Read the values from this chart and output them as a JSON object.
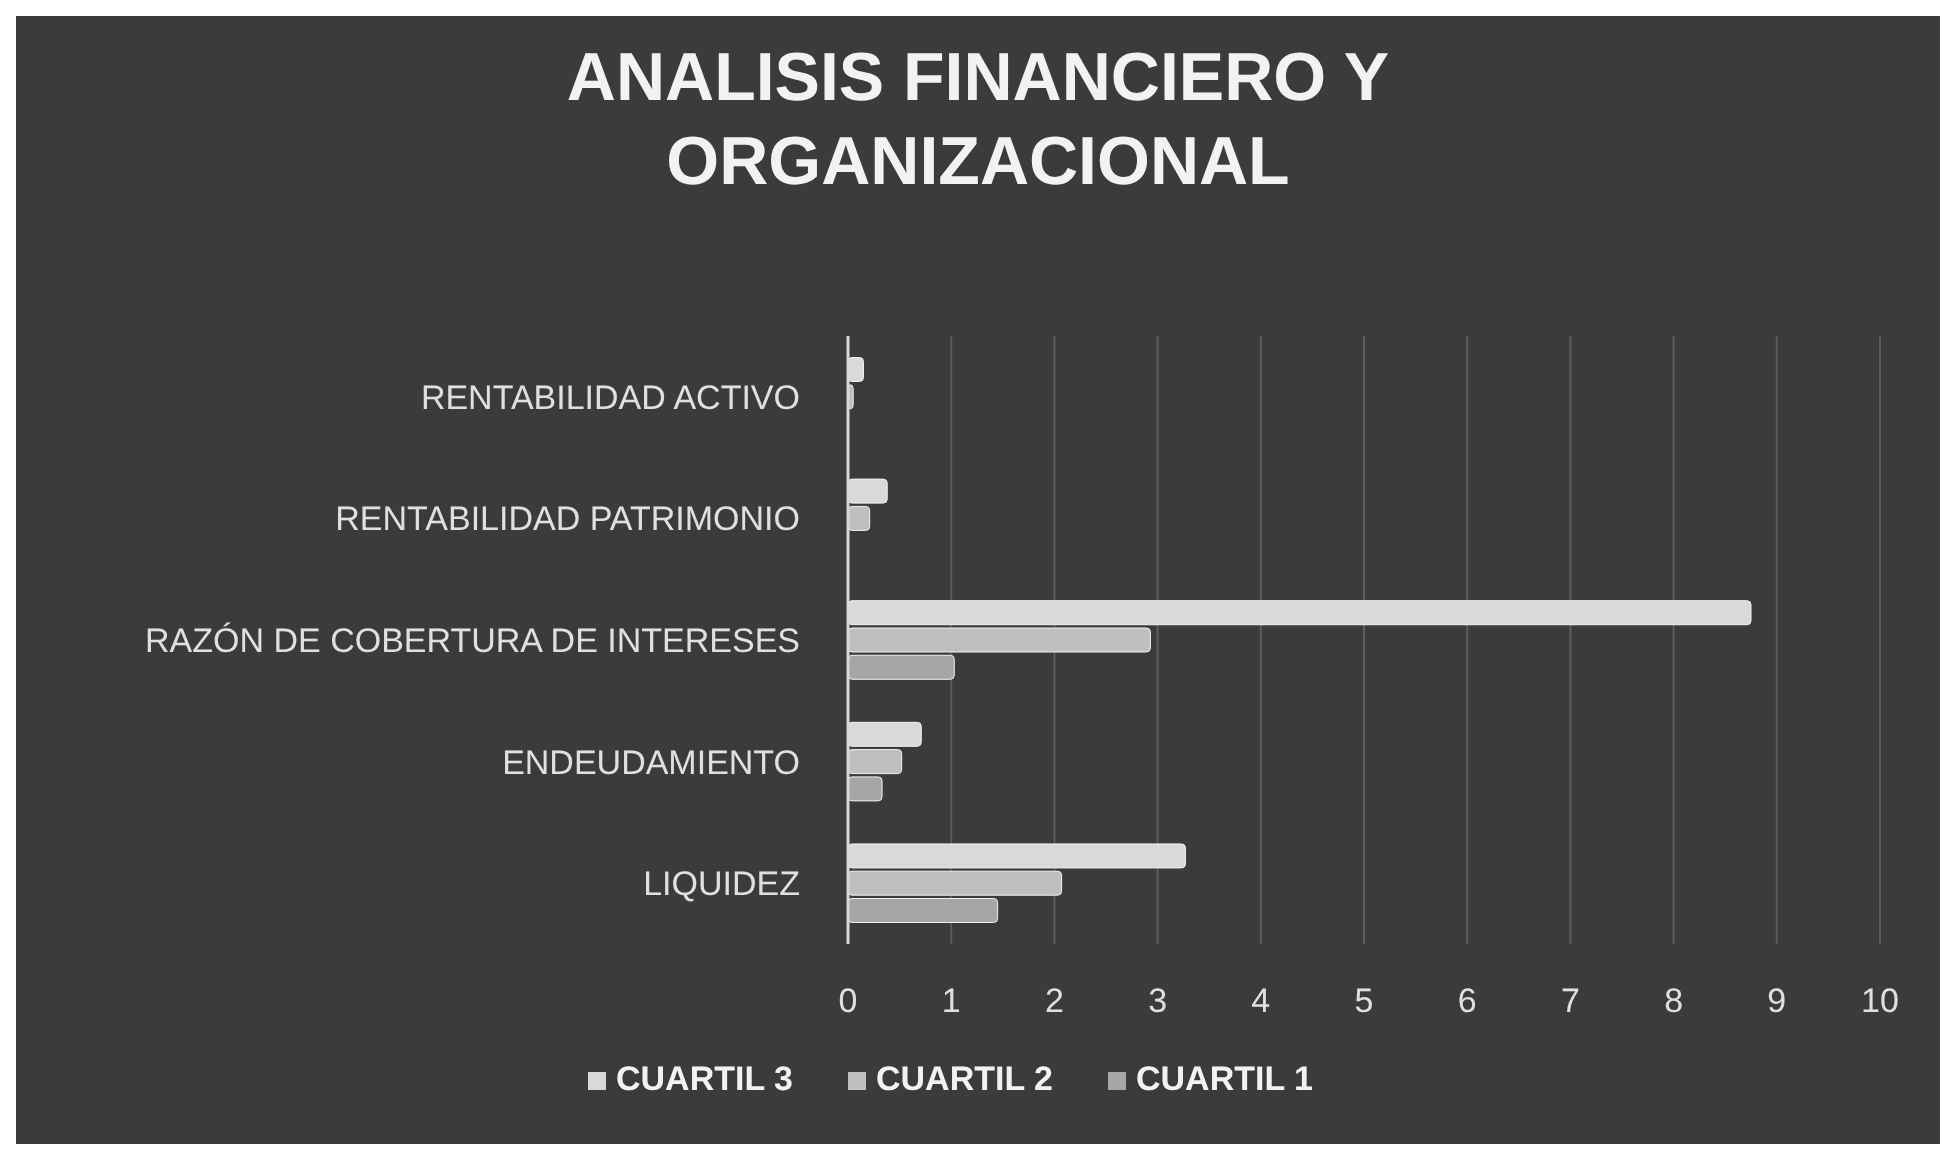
{
  "chart_data": {
    "type": "bar",
    "orientation": "horizontal",
    "title": "ANALISIS FINANCIERO Y ORGANIZACIONAL",
    "categories": [
      "RENTABILIDAD ACTIVO",
      "RENTABILIDAD PATRIMONIO",
      "RAZÓN DE COBERTURA DE INTERESES",
      "ENDEUDAMIENTO",
      "LIQUIDEZ"
    ],
    "series": [
      {
        "name": "CUARTIL 3",
        "color": "#d9d9d9",
        "values": [
          0.15,
          0.38,
          8.75,
          0.71,
          3.27
        ]
      },
      {
        "name": "CUARTIL 2",
        "color": "#bfbfbf",
        "values": [
          0.05,
          0.21,
          2.93,
          0.52,
          2.07
        ]
      },
      {
        "name": "CUARTIL 1",
        "color": "#a6a6a6",
        "values": [
          null,
          null,
          1.03,
          0.33,
          1.45
        ]
      }
    ],
    "xlim": [
      0,
      10
    ],
    "xticks": [
      0,
      1,
      2,
      3,
      4,
      5,
      6,
      7,
      8,
      9,
      10
    ],
    "grid": "x",
    "legend": "bottom"
  }
}
